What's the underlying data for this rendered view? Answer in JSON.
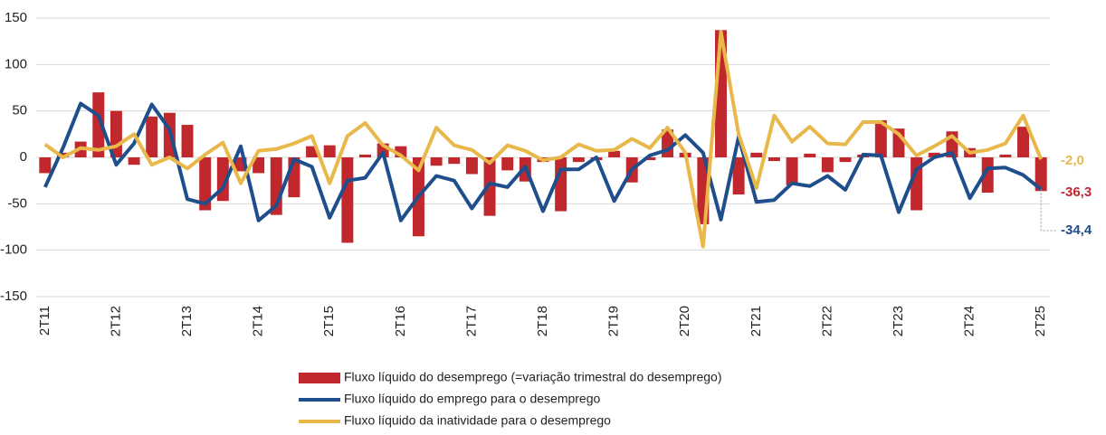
{
  "chart_data": {
    "type": "bar_line",
    "categories": [
      "2T11",
      null,
      null,
      null,
      "2T12",
      null,
      null,
      null,
      "2T13",
      null,
      null,
      null,
      "2T14",
      null,
      null,
      null,
      "2T15",
      null,
      null,
      null,
      "2T16",
      null,
      null,
      null,
      "2T17",
      null,
      null,
      null,
      "2T18",
      null,
      null,
      null,
      "2T19",
      null,
      null,
      null,
      "2T20",
      null,
      null,
      null,
      "2T21",
      null,
      null,
      null,
      "2T22",
      null,
      null,
      null,
      "2T23",
      null,
      null,
      null,
      "2T24",
      null,
      null,
      null,
      "2T25"
    ],
    "series": [
      {
        "name": "Fluxo líquido do desemprego  (=variação trimestral do desemprego)",
        "kind": "bar",
        "color": "#c0282e",
        "values": [
          -17,
          5,
          17,
          70,
          50,
          -8,
          44,
          48,
          35,
          -57,
          -47,
          -15,
          -17,
          -62,
          -43,
          12,
          13,
          -92,
          3,
          15,
          12,
          -85,
          -9,
          -7,
          -18,
          -63,
          -14,
          -26,
          -5,
          -58,
          -5,
          -3,
          7,
          -27,
          -3,
          30,
          5,
          -72,
          137,
          -40,
          5,
          -4,
          -30,
          4,
          -16,
          -5,
          3,
          40,
          31,
          -57,
          5,
          28,
          10,
          -38,
          3,
          33,
          -36.3
        ],
        "value_labels": [
          null,
          null,
          null,
          null,
          null,
          null,
          null,
          null,
          null,
          null,
          null,
          null,
          null,
          null,
          null,
          null,
          null,
          null,
          null,
          null,
          null,
          null,
          null,
          null,
          null,
          null,
          null,
          null,
          null,
          null,
          null,
          null,
          null,
          null,
          null,
          null,
          null,
          null,
          null,
          null,
          null,
          null,
          null,
          null,
          null,
          null,
          null,
          null,
          null,
          null,
          null,
          null,
          null,
          null,
          null,
          null,
          "-36,3"
        ]
      },
      {
        "name": "Fluxo líquido do emprego para o desemprego",
        "kind": "line",
        "color": "#1f4e8c",
        "values": [
          -32,
          10,
          58,
          45,
          -8,
          15,
          57,
          30,
          -45,
          -50,
          -33,
          12,
          -68,
          -52,
          -2,
          -10,
          -65,
          -25,
          -22,
          5,
          -68,
          -42,
          -20,
          -25,
          -55,
          -28,
          -32,
          -10,
          -58,
          -13,
          -13,
          0,
          -47,
          -13,
          2,
          8,
          24,
          5,
          -67,
          22,
          -48,
          -46,
          -28,
          -31,
          -20,
          -35,
          3,
          2,
          -59,
          -13,
          0,
          5,
          -44,
          -12,
          -11,
          -19,
          -34.4
        ],
        "value_labels": [
          null,
          null,
          null,
          null,
          null,
          null,
          null,
          null,
          null,
          null,
          null,
          null,
          null,
          null,
          null,
          null,
          null,
          null,
          null,
          null,
          null,
          null,
          null,
          null,
          null,
          null,
          null,
          null,
          null,
          null,
          null,
          null,
          null,
          null,
          null,
          null,
          null,
          null,
          null,
          null,
          null,
          null,
          null,
          null,
          null,
          null,
          null,
          null,
          null,
          null,
          null,
          null,
          null,
          null,
          null,
          null,
          "-34,4"
        ]
      },
      {
        "name": "Fluxo líquido da inatividade para o desemprego",
        "kind": "line",
        "color": "#e8b84a",
        "values": [
          14,
          0,
          10,
          8,
          12,
          25,
          -8,
          0,
          -12,
          3,
          16,
          -28,
          7,
          9,
          15,
          23,
          -28,
          23,
          37,
          13,
          2,
          -14,
          32,
          13,
          8,
          -6,
          13,
          7,
          -3,
          0,
          14,
          7,
          8,
          20,
          10,
          32,
          5,
          -96,
          135,
          25,
          -33,
          45,
          17,
          33,
          15,
          14,
          38,
          38,
          25,
          2,
          12,
          23,
          5,
          8,
          15,
          45,
          -2.0
        ],
        "value_labels": [
          null,
          null,
          null,
          null,
          null,
          null,
          null,
          null,
          null,
          null,
          null,
          null,
          null,
          null,
          null,
          null,
          null,
          null,
          null,
          null,
          null,
          null,
          null,
          null,
          null,
          null,
          null,
          null,
          null,
          null,
          null,
          null,
          null,
          null,
          null,
          null,
          null,
          null,
          null,
          null,
          null,
          null,
          null,
          null,
          null,
          null,
          null,
          null,
          null,
          null,
          null,
          null,
          null,
          null,
          null,
          null,
          "-2,0"
        ]
      }
    ],
    "ylim": [
      -150,
      150
    ],
    "yticks": [
      -150,
      -100,
      -50,
      0,
      50,
      100,
      150
    ],
    "grid": true
  }
}
